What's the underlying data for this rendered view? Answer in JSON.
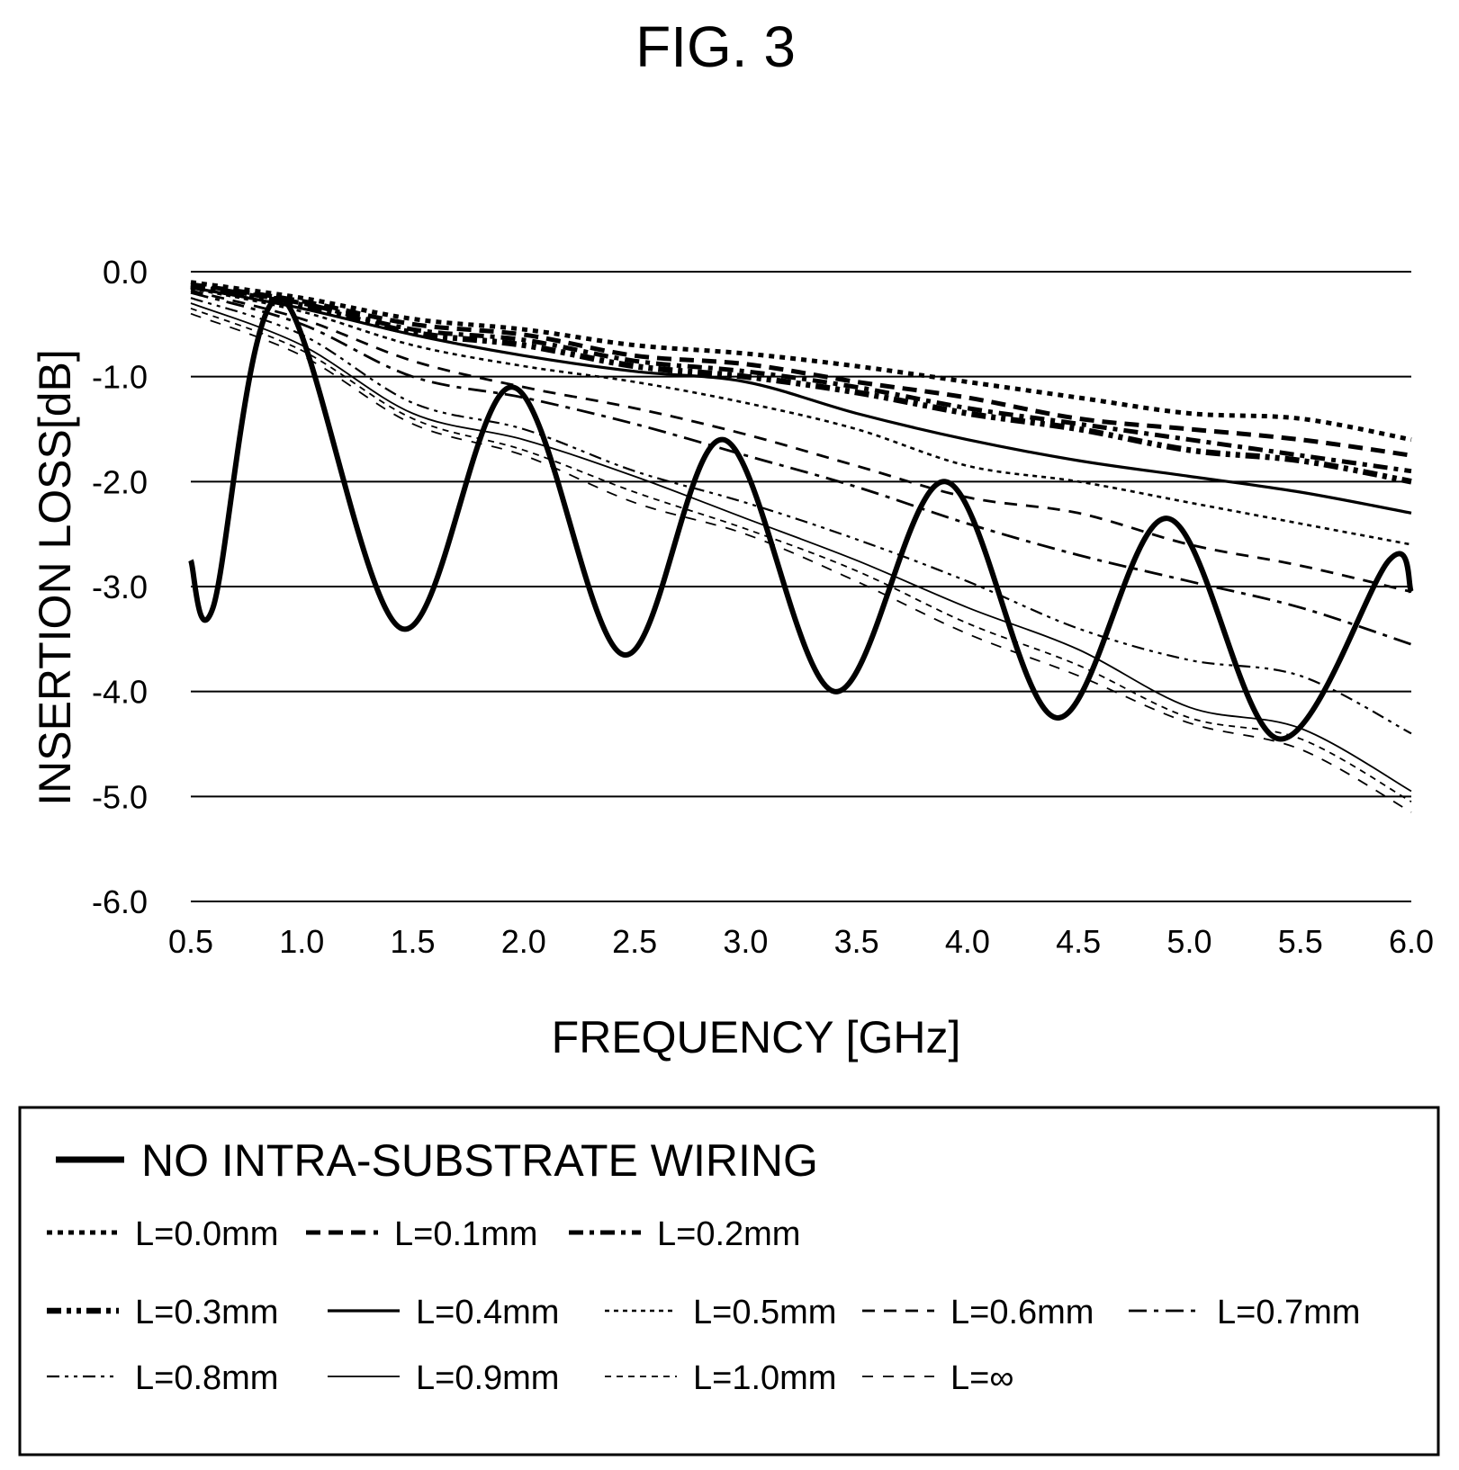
{
  "figure_label": "FIG. 3",
  "chart_data": {
    "type": "line",
    "title": "",
    "xlabel": "FREQUENCY [GHz]",
    "ylabel": "INSERTION LOSS[dB]",
    "xlim": [
      0.5,
      6.0
    ],
    "ylim": [
      -6.0,
      0.0
    ],
    "x_tick_labels": [
      "0.5",
      "1.0",
      "1.5",
      "2.0",
      "2.5",
      "3.0",
      "3.5",
      "4.0",
      "4.5",
      "5.0",
      "5.5",
      "6.0"
    ],
    "y_tick_labels": [
      "0.0",
      "-1.0",
      "-2.0",
      "-3.0",
      "-4.0",
      "-5.0",
      "-6.0"
    ],
    "grid": "horizontal",
    "legend_position": "bottom",
    "x": [
      0.5,
      1.0,
      1.5,
      2.0,
      2.5,
      3.0,
      3.5,
      4.0,
      4.5,
      5.0,
      5.5,
      6.0
    ],
    "series": [
      {
        "name": "L=0.0mm",
        "style": "dot-thick",
        "values": [
          -0.1,
          -0.25,
          -0.45,
          -0.55,
          -0.7,
          -0.78,
          -0.9,
          -1.05,
          -1.2,
          -1.35,
          -1.4,
          -1.6
        ]
      },
      {
        "name": "L=0.1mm",
        "style": "dash-thick",
        "values": [
          -0.12,
          -0.28,
          -0.5,
          -0.6,
          -0.8,
          -0.88,
          -1.05,
          -1.2,
          -1.4,
          -1.5,
          -1.6,
          -1.75
        ]
      },
      {
        "name": "L=0.2mm",
        "style": "dashdot-thick",
        "values": [
          -0.13,
          -0.3,
          -0.55,
          -0.65,
          -0.85,
          -0.95,
          -1.1,
          -1.3,
          -1.45,
          -1.6,
          -1.75,
          -1.9
        ]
      },
      {
        "name": "L=0.3mm",
        "style": "dashdotdot-thick",
        "values": [
          -0.14,
          -0.32,
          -0.58,
          -0.7,
          -0.9,
          -1.0,
          -1.15,
          -1.35,
          -1.5,
          -1.7,
          -1.8,
          -2.0
        ]
      },
      {
        "name": "L=0.4mm",
        "style": "solid-medium",
        "values": [
          -0.15,
          -0.35,
          -0.6,
          -0.8,
          -0.95,
          -1.05,
          -1.35,
          -1.6,
          -1.8,
          -1.95,
          -2.1,
          -2.3
        ]
      },
      {
        "name": "L=0.5mm",
        "style": "dot-medium",
        "values": [
          -0.16,
          -0.38,
          -0.7,
          -0.9,
          -1.05,
          -1.25,
          -1.5,
          -1.85,
          -2.0,
          -2.2,
          -2.4,
          -2.6
        ]
      },
      {
        "name": "L=0.6mm",
        "style": "dash-medium",
        "values": [
          -0.18,
          -0.45,
          -0.85,
          -1.1,
          -1.3,
          -1.55,
          -1.85,
          -2.15,
          -2.3,
          -2.6,
          -2.8,
          -3.05
        ]
      },
      {
        "name": "L=0.7mm",
        "style": "dashdot-medium",
        "values": [
          -0.2,
          -0.5,
          -1.0,
          -1.2,
          -1.45,
          -1.75,
          -2.05,
          -2.4,
          -2.7,
          -2.95,
          -3.2,
          -3.55
        ]
      },
      {
        "name": "L=0.8mm",
        "style": "dashdotdot-thin",
        "values": [
          -0.25,
          -0.6,
          -1.25,
          -1.5,
          -1.9,
          -2.2,
          -2.55,
          -2.95,
          -3.4,
          -3.7,
          -3.85,
          -4.4
        ]
      },
      {
        "name": "L=0.9mm",
        "style": "solid-thin",
        "values": [
          -0.3,
          -0.7,
          -1.35,
          -1.6,
          -1.95,
          -2.35,
          -2.75,
          -3.2,
          -3.6,
          -4.15,
          -4.35,
          -4.95
        ]
      },
      {
        "name": "L=1.0mm",
        "style": "dash-small-thin",
        "values": [
          -0.35,
          -0.75,
          -1.4,
          -1.7,
          -2.1,
          -2.45,
          -2.85,
          -3.35,
          -3.75,
          -4.25,
          -4.45,
          -5.05
        ]
      },
      {
        "name": "L=∞",
        "style": "dash-long-thin",
        "values": [
          -0.4,
          -0.8,
          -1.45,
          -1.75,
          -2.2,
          -2.5,
          -2.95,
          -3.45,
          -3.85,
          -4.3,
          -4.55,
          -5.15
        ]
      },
      {
        "name": "NO INTRA-SUBSTRATE WIRING",
        "style": "solid-heavy",
        "x": [
          0.5,
          0.6,
          0.9,
          1.45,
          1.95,
          2.45,
          2.9,
          3.4,
          3.9,
          4.4,
          4.9,
          5.4,
          5.9,
          6.0
        ],
        "values": [
          -2.75,
          -3.2,
          -0.25,
          -3.4,
          -1.1,
          -3.65,
          -1.6,
          -4.0,
          -2.0,
          -4.25,
          -2.35,
          -4.45,
          -2.75,
          -3.05
        ]
      }
    ],
    "legend": {
      "main": "NO INTRA-SUBSTRATE WIRING",
      "rows": [
        [
          "L=0.0mm",
          "L=0.1mm",
          "L=0.2mm"
        ],
        [
          "L=0.3mm",
          "L=0.4mm",
          "L=0.5mm",
          "L=0.6mm",
          "L=0.7mm"
        ],
        [
          "L=0.8mm",
          "L=0.9mm",
          "L=1.0mm",
          "L=∞"
        ]
      ]
    }
  }
}
